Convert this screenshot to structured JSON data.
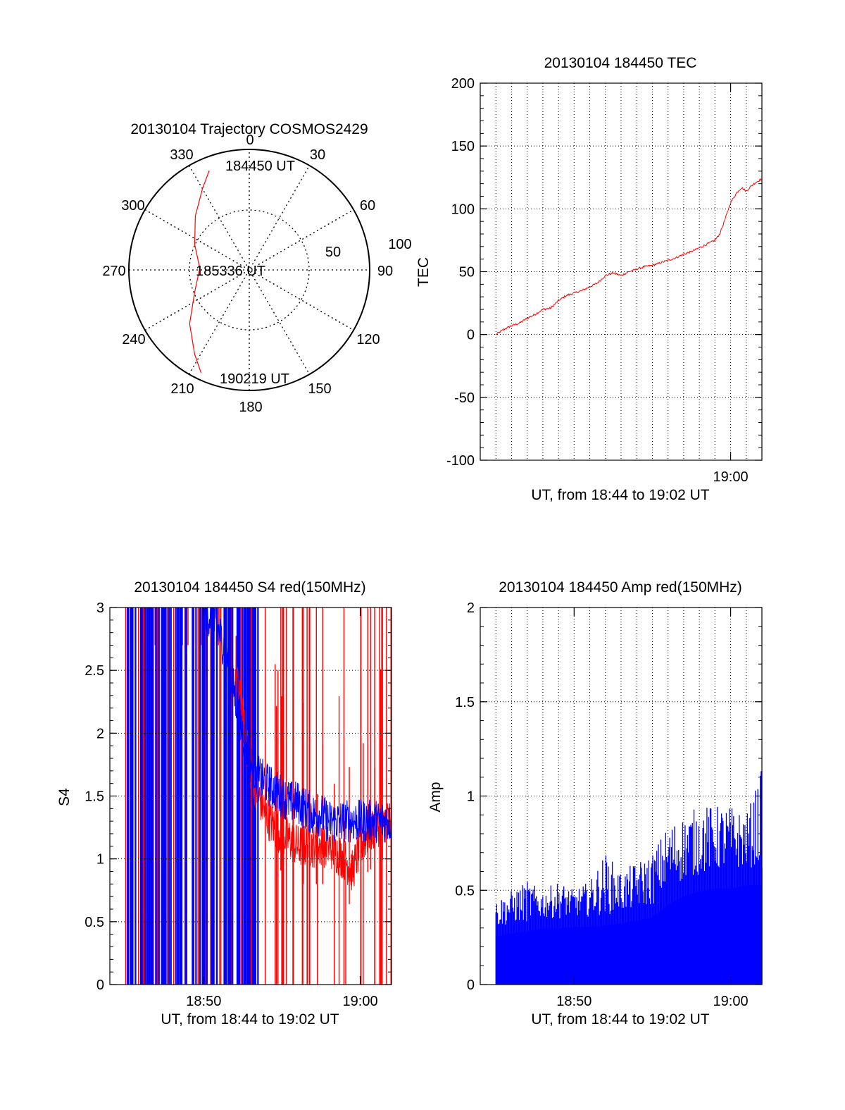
{
  "colors": {
    "red": "#ff0000",
    "blue": "#0000ff",
    "axis": "#000000"
  },
  "chart_data": [
    {
      "id": "trajectory",
      "type": "polar",
      "title": "20130104 Trajectory COSMOS2429",
      "azimuth_labels": [
        "0",
        "30",
        "60",
        "90",
        "120",
        "150",
        "180",
        "210",
        "240",
        "270",
        "300",
        "330"
      ],
      "radial_labels": [
        "50",
        "100"
      ],
      "track_labels": {
        "start": "184450 UT",
        "mid": "185336 UT",
        "end": "190219 UT"
      },
      "track": [
        {
          "az": 338,
          "el": 10
        },
        {
          "az": 330,
          "el": 20
        },
        {
          "az": 315,
          "el": 33
        },
        {
          "az": 295,
          "el": 45
        },
        {
          "az": 272,
          "el": 53
        },
        {
          "az": 248,
          "el": 46
        },
        {
          "az": 228,
          "el": 30
        },
        {
          "az": 213,
          "el": 15
        },
        {
          "az": 205,
          "el": 5
        }
      ]
    },
    {
      "id": "tec",
      "type": "line",
      "title": "20130104 184450 TEC",
      "xlabel": "UT, from 18:44 to 19:02 UT",
      "ylabel": "TEC",
      "xticks": [
        "19:00"
      ],
      "yticks": [
        "200",
        "150",
        "100",
        "50",
        "0",
        "-50",
        "-100"
      ],
      "ylim": [
        -100,
        200
      ],
      "xlim_minutes": [
        44.0,
        62.0
      ],
      "series": [
        {
          "color": "red",
          "x": [
            45.0,
            45.5,
            46.0,
            46.5,
            47.0,
            47.5,
            48.0,
            48.5,
            49.0,
            49.5,
            50.0,
            50.5,
            51.0,
            51.5,
            52.0,
            52.5,
            53.0,
            53.5,
            54.0,
            54.5,
            55.0,
            55.5,
            56.0,
            56.5,
            57.0,
            57.5,
            58.0,
            58.5,
            59.0,
            59.3,
            59.6,
            60.0,
            60.4,
            60.7,
            61.0,
            61.3,
            61.6,
            62.0
          ],
          "y": [
            0,
            4,
            7,
            9,
            13,
            16,
            20,
            21,
            27,
            31,
            33,
            35,
            38,
            41,
            47,
            49,
            47,
            50,
            52,
            54,
            55,
            57,
            59,
            61,
            64,
            66,
            69,
            72,
            75,
            80,
            90,
            105,
            113,
            117,
            114,
            118,
            121,
            124
          ]
        }
      ]
    },
    {
      "id": "s4",
      "type": "line",
      "title": "20130104 184450 S4 red(150MHz)",
      "xlabel": "UT, from 18:44 to 19:02 UT",
      "ylabel": "S4",
      "xticks": [
        "18:50",
        "19:00"
      ],
      "yticks": [
        "3",
        "2.5",
        "2",
        "1.5",
        "1",
        "0.5",
        "0"
      ],
      "ylim": [
        0,
        3
      ],
      "xlim_minutes": [
        44.0,
        62.0
      ],
      "series": [
        {
          "color": "blue",
          "x": [
            45.0,
            46.0,
            47.0,
            48.0,
            49.0,
            50.0,
            50.5,
            51.0,
            51.5,
            52.0,
            52.5,
            53.0,
            53.5,
            54.0,
            54.5,
            55.0,
            55.5,
            56.0,
            56.5,
            57.0,
            57.5,
            58.0,
            58.5,
            59.0,
            59.5,
            60.0,
            60.5,
            61.0,
            61.5,
            62.0
          ],
          "y": [
            3.0,
            3.0,
            3.0,
            3.0,
            3.0,
            3.0,
            2.9,
            2.8,
            2.6,
            2.3,
            2.0,
            1.75,
            1.65,
            1.6,
            1.55,
            1.5,
            1.45,
            1.45,
            1.4,
            1.35,
            1.35,
            1.3,
            1.3,
            1.3,
            1.3,
            1.3,
            1.3,
            1.3,
            1.3,
            1.3
          ]
        },
        {
          "color": "red",
          "x": [
            45.0,
            46.0,
            47.0,
            48.0,
            49.0,
            50.0,
            51.0,
            52.0,
            52.5,
            53.0,
            53.5,
            54.0,
            54.5,
            55.0,
            55.5,
            56.0,
            56.5,
            57.0,
            57.5,
            58.0,
            58.5,
            59.0,
            59.5,
            60.0,
            60.5,
            61.0,
            61.5,
            62.0
          ],
          "y": [
            3.0,
            3.0,
            3.0,
            3.0,
            3.0,
            3.0,
            3.0,
            2.5,
            2.1,
            1.7,
            1.5,
            1.35,
            1.25,
            1.2,
            1.15,
            1.1,
            1.1,
            1.1,
            1.1,
            1.1,
            1.05,
            1.0,
            0.9,
            1.1,
            1.2,
            1.25,
            1.3,
            1.3
          ]
        }
      ]
    },
    {
      "id": "amp",
      "type": "area",
      "title": "20130104 184450 Amp red(150MHz)",
      "xlabel": "UT, from 18:44 to 19:02 UT",
      "ylabel": "Amp",
      "xticks": [
        "18:50",
        "19:00"
      ],
      "yticks": [
        "2",
        "1.5",
        "1",
        "0.5",
        "0"
      ],
      "ylim": [
        0,
        2
      ],
      "xlim_minutes": [
        44.0,
        62.0
      ],
      "series": [
        {
          "color": "blue",
          "x": [
            45.0,
            46.0,
            47.0,
            48.0,
            49.0,
            50.0,
            51.0,
            52.0,
            53.0,
            54.0,
            55.0,
            56.0,
            57.0,
            58.0,
            59.0,
            60.0,
            61.0,
            62.0
          ],
          "y": [
            0.3,
            0.32,
            0.33,
            0.35,
            0.35,
            0.36,
            0.36,
            0.37,
            0.38,
            0.4,
            0.42,
            0.5,
            0.55,
            0.58,
            0.6,
            0.6,
            0.62,
            0.62
          ],
          "peaks": [
            0.45,
            0.5,
            0.55,
            0.5,
            0.55,
            0.5,
            0.55,
            0.7,
            0.6,
            0.65,
            0.7,
            0.85,
            0.9,
            0.95,
            0.95,
            0.95,
            0.9,
            1.15
          ]
        }
      ]
    }
  ]
}
